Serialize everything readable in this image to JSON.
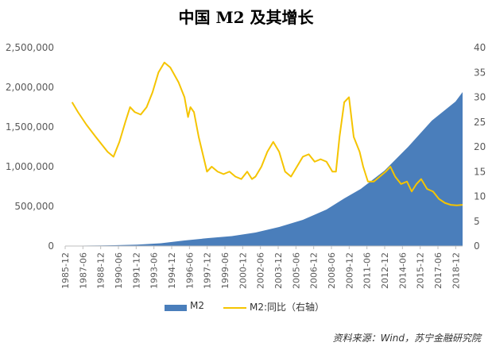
{
  "chart_data": {
    "type": "area+line",
    "title": "中国 M2 及其增长",
    "source": "资料来源：Wind，苏宁金融研究院",
    "x_tick_labels": [
      "1985-12",
      "1987-06",
      "1988-12",
      "1990-06",
      "1991-12",
      "1993-06",
      "1994-12",
      "1996-06",
      "1997-12",
      "1999-06",
      "2000-12",
      "2002-06",
      "2003-12",
      "2005-06",
      "2006-12",
      "2008-06",
      "2009-12",
      "2011-06",
      "2012-12",
      "2014-06",
      "2015-12",
      "2017-06",
      "2018-12"
    ],
    "x_range": [
      1985.917,
      2019.5
    ],
    "y_left": {
      "range": [
        0,
        2500000
      ],
      "ticks": [
        0,
        500000,
        1000000,
        1500000,
        2000000,
        2500000
      ],
      "tick_labels": [
        "0",
        "500,000",
        "1,000,000",
        "1,500,000",
        "2,000,000",
        "2,500,000"
      ]
    },
    "y_right": {
      "range": [
        0,
        40
      ],
      "ticks": [
        0,
        5,
        10,
        15,
        20,
        25,
        30,
        35,
        40
      ],
      "tick_labels": [
        "0",
        "5",
        "10",
        "15",
        "20",
        "25",
        "30",
        "35",
        "40"
      ]
    },
    "legend": {
      "position": "bottom",
      "entries": [
        "M2",
        "M2:同比（右轴）"
      ]
    },
    "series": [
      {
        "name": "M2",
        "kind": "area",
        "axis": "left",
        "color": "#4a7ebb",
        "points": [
          [
            1985.917,
            3000
          ],
          [
            1988,
            6000
          ],
          [
            1990,
            10000
          ],
          [
            1992,
            18000
          ],
          [
            1994,
            35000
          ],
          [
            1996,
            70000
          ],
          [
            1998,
            100000
          ],
          [
            2000,
            125000
          ],
          [
            2002,
            170000
          ],
          [
            2004,
            240000
          ],
          [
            2006,
            330000
          ],
          [
            2008,
            460000
          ],
          [
            2009.5,
            600000
          ],
          [
            2010.9,
            720000
          ],
          [
            2012.9,
            950000
          ],
          [
            2014.9,
            1250000
          ],
          [
            2016.9,
            1580000
          ],
          [
            2018.9,
            1820000
          ],
          [
            2019.5,
            1940000
          ]
        ]
      },
      {
        "name": "M2:同比（右轴）",
        "kind": "line",
        "axis": "right",
        "color": "#f5c400",
        "points": [
          [
            1986.5,
            29
          ],
          [
            1987,
            27
          ],
          [
            1987.7,
            24.5
          ],
          [
            1988.5,
            22
          ],
          [
            1989.5,
            19
          ],
          [
            1990.0,
            18
          ],
          [
            1990.5,
            21
          ],
          [
            1991.0,
            25
          ],
          [
            1991.4,
            28
          ],
          [
            1991.8,
            27
          ],
          [
            1992.3,
            26.5
          ],
          [
            1992.8,
            28
          ],
          [
            1993.3,
            31
          ],
          [
            1993.8,
            35
          ],
          [
            1994.3,
            37
          ],
          [
            1994.8,
            36
          ],
          [
            1995.5,
            33
          ],
          [
            1996.0,
            30
          ],
          [
            1996.3,
            26
          ],
          [
            1996.5,
            28
          ],
          [
            1996.8,
            27
          ],
          [
            1997.2,
            22
          ],
          [
            1997.6,
            18
          ],
          [
            1997.9,
            15
          ],
          [
            1998.3,
            16
          ],
          [
            1998.8,
            15
          ],
          [
            1999.3,
            14.5
          ],
          [
            1999.8,
            15
          ],
          [
            2000.3,
            14
          ],
          [
            2000.8,
            13.5
          ],
          [
            2001.3,
            15
          ],
          [
            2001.7,
            13.5
          ],
          [
            2002.0,
            14
          ],
          [
            2002.5,
            16
          ],
          [
            2003.0,
            19
          ],
          [
            2003.5,
            21
          ],
          [
            2004.0,
            19
          ],
          [
            2004.5,
            15
          ],
          [
            2005.0,
            14
          ],
          [
            2005.5,
            16
          ],
          [
            2006.0,
            18
          ],
          [
            2006.5,
            18.5
          ],
          [
            2007.0,
            17
          ],
          [
            2007.5,
            17.5
          ],
          [
            2008.0,
            17
          ],
          [
            2008.5,
            15
          ],
          [
            2008.8,
            15
          ],
          [
            2009.1,
            22
          ],
          [
            2009.5,
            29
          ],
          [
            2009.9,
            30
          ],
          [
            2010.3,
            22
          ],
          [
            2010.8,
            19
          ],
          [
            2011.1,
            16
          ],
          [
            2011.5,
            13
          ],
          [
            2012.0,
            13
          ],
          [
            2012.5,
            14
          ],
          [
            2013.0,
            15
          ],
          [
            2013.4,
            16
          ],
          [
            2013.8,
            14
          ],
          [
            2014.3,
            12.5
          ],
          [
            2014.8,
            13
          ],
          [
            2015.2,
            11
          ],
          [
            2015.6,
            12.5
          ],
          [
            2016.0,
            13.5
          ],
          [
            2016.5,
            11.5
          ],
          [
            2017.0,
            11
          ],
          [
            2017.5,
            9.5
          ],
          [
            2018.0,
            8.7
          ],
          [
            2018.5,
            8.3
          ],
          [
            2019.0,
            8.2
          ],
          [
            2019.5,
            8.3
          ]
        ]
      }
    ]
  }
}
